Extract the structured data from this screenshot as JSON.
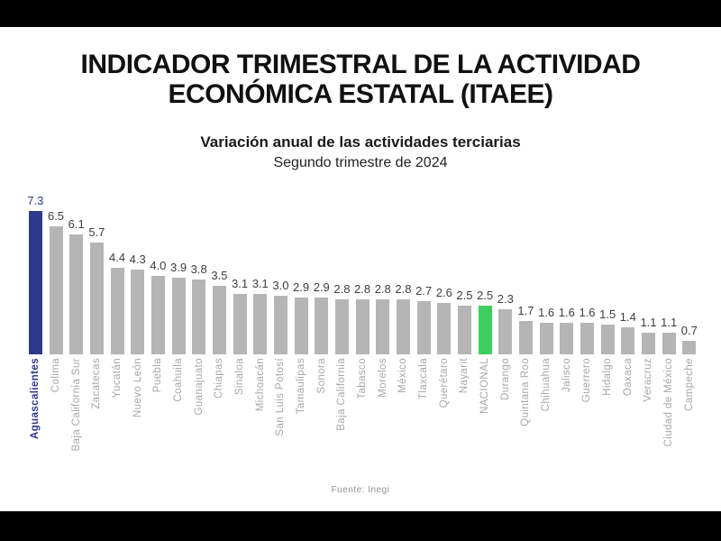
{
  "frame": {
    "letterbox_color": "#000000",
    "canvas_color": "#ffffff"
  },
  "chart_data": {
    "type": "bar",
    "title": "INDICADOR TRIMESTRAL DE LA ACTIVIDAD ECONÓMICA ESTATAL (ITAEE)",
    "subtitle": "Variación anual de las actividades terciarias",
    "period": "Segundo trimestre de 2024",
    "source": "Fuente: Inegi",
    "categories": [
      "Aguascalientes",
      "Colima",
      "Baja California Sur",
      "Zacatecas",
      "Yucatán",
      "Nuevo León",
      "Puebla",
      "Coahuila",
      "Guanajuato",
      "Chiapas",
      "Sinaloa",
      "Michoacán",
      "San Luis Potosí",
      "Tamaulipas",
      "Sonora",
      "Baja California",
      "Tabasco",
      "Morelos",
      "México",
      "Tlaxcala",
      "Querétaro",
      "Nayarit",
      "NACIONAL",
      "Durango",
      "Quintana Roo",
      "Chihuahua",
      "Jalisco",
      "Guerrero",
      "Hidalgo",
      "Oaxaca",
      "Veracruz",
      "Ciudad de México",
      "Campeche"
    ],
    "values": [
      7.3,
      6.5,
      6.1,
      5.7,
      4.4,
      4.3,
      4.0,
      3.9,
      3.8,
      3.5,
      3.1,
      3.1,
      3.0,
      2.9,
      2.9,
      2.8,
      2.8,
      2.8,
      2.8,
      2.7,
      2.6,
      2.5,
      2.5,
      2.3,
      1.7,
      1.6,
      1.6,
      1.6,
      1.5,
      1.4,
      1.1,
      1.1,
      0.7
    ],
    "ylim": [
      0,
      7.3
    ],
    "grid": false,
    "legend": "none",
    "orientation": "vertical-bars",
    "value_labels": "above-bars",
    "default_bar_color": "#b5b5b6",
    "value_label_color": "#3d3d3d",
    "axis_label_color": "#a7a7a7",
    "highlights": [
      {
        "index": 0,
        "category": "Aguascalientes",
        "bar_color": "#2d3a8b",
        "value_color": "#2d3a8b",
        "label_color": "#2d3a8b",
        "label_bold": true
      },
      {
        "index": 22,
        "category": "NACIONAL",
        "bar_color": "#3fcd60"
      }
    ]
  }
}
